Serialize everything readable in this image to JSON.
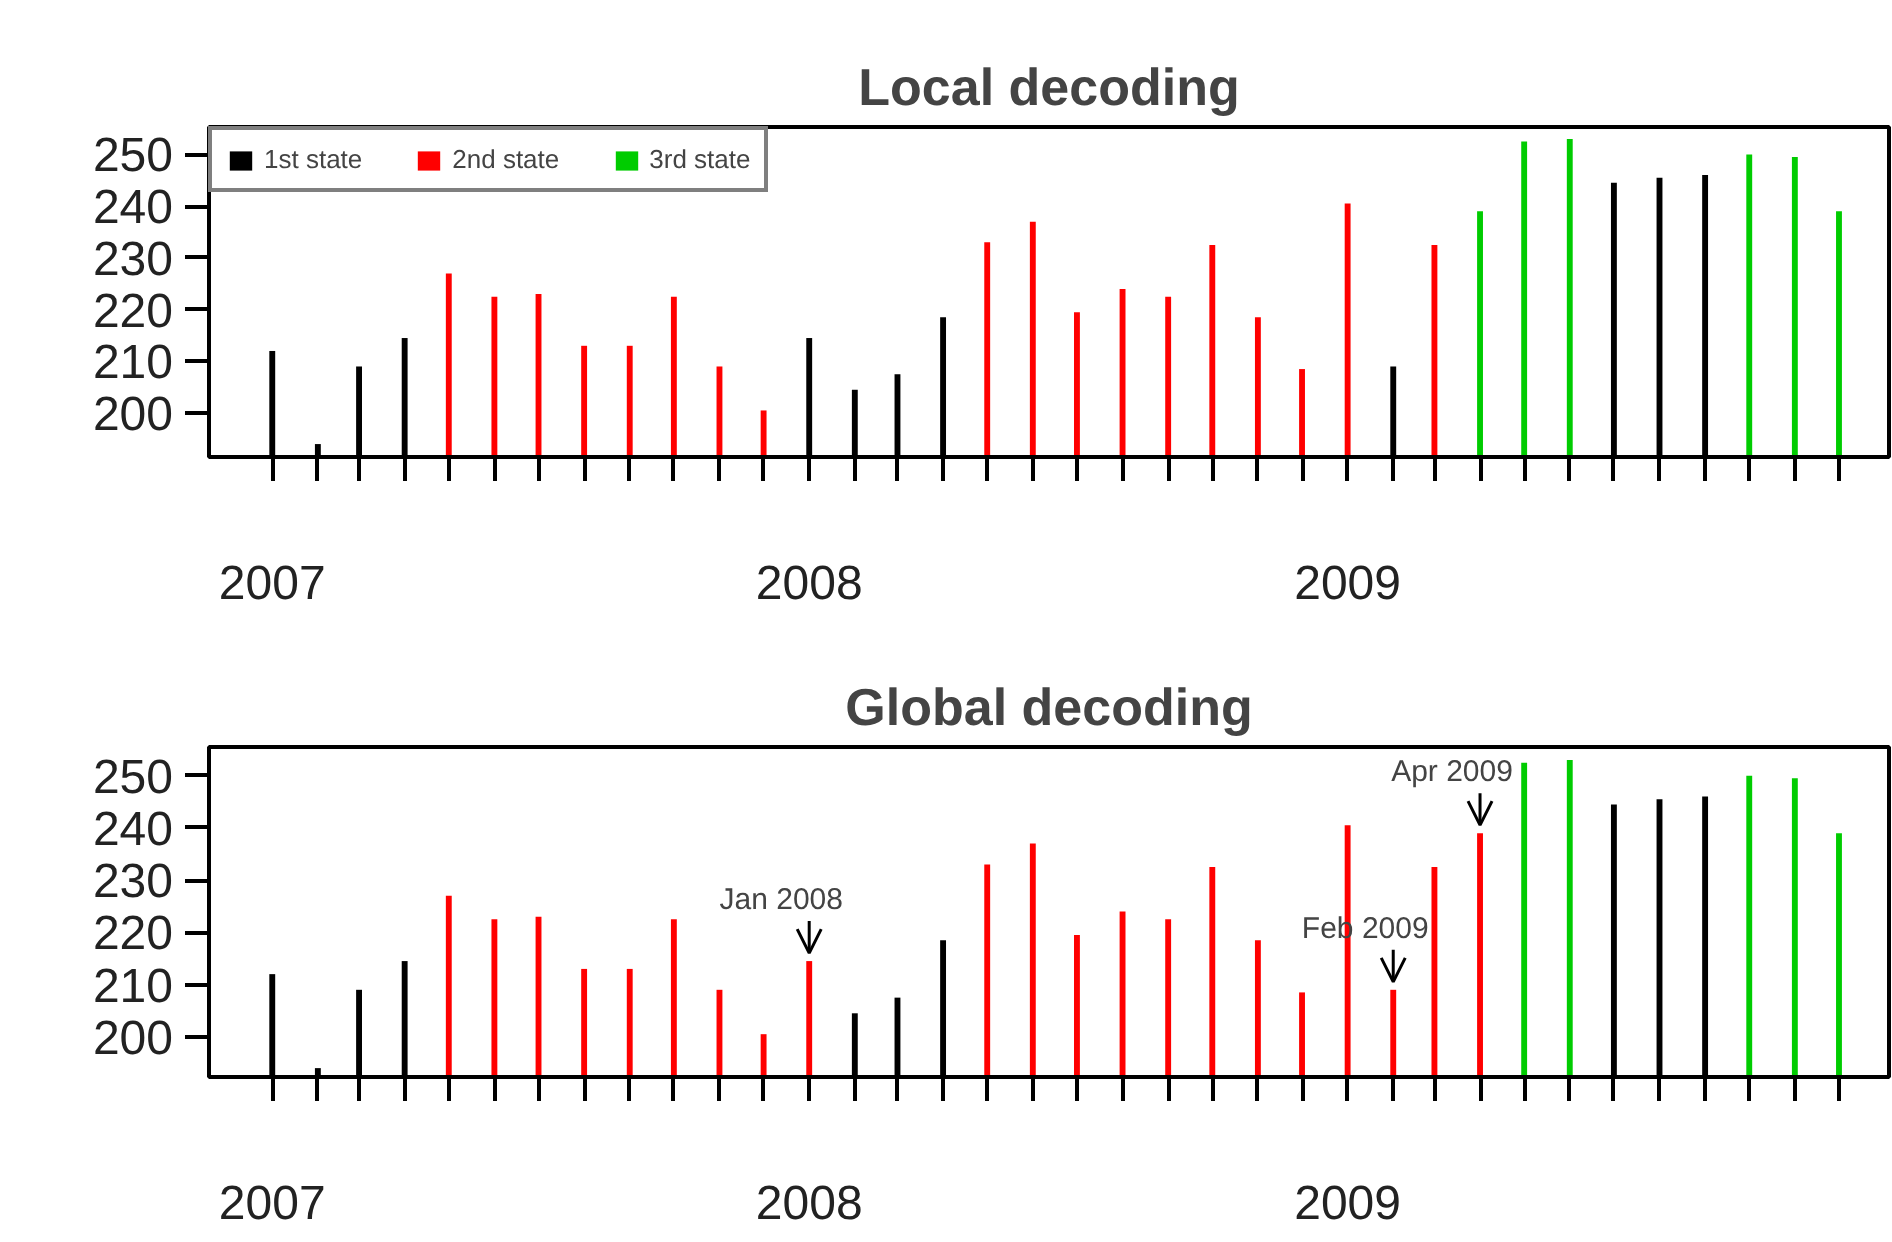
{
  "chart_data": [
    {
      "type": "bar",
      "title": "Local decoding",
      "x": [
        "2007-01",
        "2007-02",
        "2007-03",
        "2007-04",
        "2007-05",
        "2007-06",
        "2007-07",
        "2007-08",
        "2007-09",
        "2007-10",
        "2007-11",
        "2007-12",
        "2008-01",
        "2008-02",
        "2008-03",
        "2008-04",
        "2008-05",
        "2008-06",
        "2008-07",
        "2008-08",
        "2008-09",
        "2008-10",
        "2008-11",
        "2008-12",
        "2009-01",
        "2009-02",
        "2009-03",
        "2009-04",
        "2009-05",
        "2009-06",
        "2009-07",
        "2009-08",
        "2009-09",
        "2009-10",
        "2009-11",
        "2009-12"
      ],
      "series": [
        {
          "name": "1st state",
          "color": "#000000",
          "values": [
            212,
            194,
            209,
            214.5,
            null,
            null,
            null,
            null,
            null,
            null,
            null,
            null,
            214.5,
            204.5,
            207.5,
            218.5,
            null,
            null,
            null,
            null,
            null,
            null,
            null,
            null,
            null,
            209,
            null,
            null,
            null,
            null,
            244.5,
            245.5,
            246,
            null,
            null,
            null
          ]
        },
        {
          "name": "2nd state",
          "color": "#ff0000",
          "values": [
            null,
            null,
            null,
            null,
            227,
            222.5,
            223,
            213,
            213,
            222.5,
            209,
            200.5,
            null,
            null,
            null,
            null,
            233,
            237,
            219.5,
            224,
            222.5,
            232.5,
            218.5,
            208.5,
            240.5,
            null,
            232.5,
            null,
            null,
            null,
            null,
            null,
            null,
            null,
            null,
            null
          ]
        },
        {
          "name": "3rd state",
          "color": "#00cc00",
          "values": [
            null,
            null,
            null,
            null,
            null,
            null,
            null,
            null,
            null,
            null,
            null,
            null,
            null,
            null,
            null,
            null,
            null,
            null,
            null,
            null,
            null,
            null,
            null,
            null,
            null,
            null,
            null,
            239,
            252.5,
            253,
            null,
            null,
            null,
            250,
            249.5,
            239
          ]
        }
      ],
      "xlim": [
        "2006-11-19",
        "2010-01-04"
      ],
      "xticks": [
        {
          "value": "2007-01",
          "label": "2007"
        },
        {
          "value": "2007-02",
          "label": null
        },
        {
          "value": "2007-03",
          "label": null
        },
        {
          "value": "2007-04",
          "label": null
        },
        {
          "value": "2007-05",
          "label": null
        },
        {
          "value": "2007-06",
          "label": null
        },
        {
          "value": "2007-07",
          "label": null
        },
        {
          "value": "2007-08",
          "label": null
        },
        {
          "value": "2007-09",
          "label": null
        },
        {
          "value": "2007-10",
          "label": null
        },
        {
          "value": "2007-11",
          "label": null
        },
        {
          "value": "2007-12",
          "label": null
        },
        {
          "value": "2008-01",
          "label": "2008"
        },
        {
          "value": "2008-02",
          "label": null
        },
        {
          "value": "2008-03",
          "label": null
        },
        {
          "value": "2008-04",
          "label": null
        },
        {
          "value": "2008-05",
          "label": null
        },
        {
          "value": "2008-06",
          "label": null
        },
        {
          "value": "2008-07",
          "label": null
        },
        {
          "value": "2008-08",
          "label": null
        },
        {
          "value": "2008-09",
          "label": null
        },
        {
          "value": "2008-10",
          "label": null
        },
        {
          "value": "2008-11",
          "label": null
        },
        {
          "value": "2008-12",
          "label": null
        },
        {
          "value": "2009-01",
          "label": "2009"
        },
        {
          "value": "2009-02",
          "label": null
        },
        {
          "value": "2009-03",
          "label": null
        },
        {
          "value": "2009-04",
          "label": null
        },
        {
          "value": "2009-05",
          "label": null
        },
        {
          "value": "2009-06",
          "label": null
        },
        {
          "value": "2009-07",
          "label": null
        },
        {
          "value": "2009-08",
          "label": null
        },
        {
          "value": "2009-09",
          "label": null
        },
        {
          "value": "2009-10",
          "label": null
        },
        {
          "value": "2009-11",
          "label": null
        },
        {
          "value": "2009-12",
          "label": null
        }
      ],
      "ylim": [
        191.5,
        255.3
      ],
      "yticks": [
        200,
        210,
        220,
        230,
        240,
        250
      ],
      "grid": false,
      "legend": "top left"
    },
    {
      "type": "bar",
      "title": "Global decoding",
      "x": [
        "2007-01",
        "2007-02",
        "2007-03",
        "2007-04",
        "2007-05",
        "2007-06",
        "2007-07",
        "2007-08",
        "2007-09",
        "2007-10",
        "2007-11",
        "2007-12",
        "2008-01",
        "2008-02",
        "2008-03",
        "2008-04",
        "2008-05",
        "2008-06",
        "2008-07",
        "2008-08",
        "2008-09",
        "2008-10",
        "2008-11",
        "2008-12",
        "2009-01",
        "2009-02",
        "2009-03",
        "2009-04",
        "2009-05",
        "2009-06",
        "2009-07",
        "2009-08",
        "2009-09",
        "2009-10",
        "2009-11",
        "2009-12"
      ],
      "series": [
        {
          "color": "#000000",
          "values": [
            212,
            194,
            209,
            214.5,
            null,
            null,
            null,
            null,
            null,
            null,
            null,
            null,
            null,
            204.5,
            207.5,
            218.5,
            null,
            null,
            null,
            null,
            null,
            null,
            null,
            null,
            null,
            null,
            null,
            null,
            null,
            null,
            244.5,
            245.5,
            246,
            null,
            null,
            null
          ]
        },
        {
          "color": "#ff0000",
          "values": [
            null,
            null,
            null,
            null,
            227,
            222.5,
            223,
            213,
            213,
            222.5,
            209,
            200.5,
            214.5,
            null,
            null,
            null,
            233,
            237,
            219.5,
            224,
            222.5,
            232.5,
            218.5,
            208.5,
            240.5,
            209,
            232.5,
            239,
            null,
            null,
            null,
            null,
            null,
            null,
            null,
            null
          ]
        },
        {
          "color": "#00cc00",
          "values": [
            null,
            null,
            null,
            null,
            null,
            null,
            null,
            null,
            null,
            null,
            null,
            null,
            null,
            null,
            null,
            null,
            null,
            null,
            null,
            null,
            null,
            null,
            null,
            null,
            null,
            null,
            null,
            null,
            252.5,
            253,
            null,
            null,
            null,
            250,
            249.5,
            239
          ]
        }
      ],
      "annotations": [
        {
          "text": "Jan 2008",
          "x": "2008-01",
          "y": 214.5
        },
        {
          "text": "Feb 2009",
          "x": "2009-02",
          "y": 209
        },
        {
          "text": "Apr 2009",
          "x": "2009-04",
          "y": 239
        }
      ],
      "xlim": [
        "2006-11-19",
        "2010-01-04"
      ],
      "xticks": [
        {
          "value": "2007-01",
          "label": "2007"
        },
        {
          "value": "2007-02",
          "label": null
        },
        {
          "value": "2007-03",
          "label": null
        },
        {
          "value": "2007-04",
          "label": null
        },
        {
          "value": "2007-05",
          "label": null
        },
        {
          "value": "2007-06",
          "label": null
        },
        {
          "value": "2007-07",
          "label": null
        },
        {
          "value": "2007-08",
          "label": null
        },
        {
          "value": "2007-09",
          "label": null
        },
        {
          "value": "2007-10",
          "label": null
        },
        {
          "value": "2007-11",
          "label": null
        },
        {
          "value": "2007-12",
          "label": null
        },
        {
          "value": "2008-01",
          "label": "2008"
        },
        {
          "value": "2008-02",
          "label": null
        },
        {
          "value": "2008-03",
          "label": null
        },
        {
          "value": "2008-04",
          "label": null
        },
        {
          "value": "2008-05",
          "label": null
        },
        {
          "value": "2008-06",
          "label": null
        },
        {
          "value": "2008-07",
          "label": null
        },
        {
          "value": "2008-08",
          "label": null
        },
        {
          "value": "2008-09",
          "label": null
        },
        {
          "value": "2008-10",
          "label": null
        },
        {
          "value": "2008-11",
          "label": null
        },
        {
          "value": "2008-12",
          "label": null
        },
        {
          "value": "2009-01",
          "label": "2009"
        },
        {
          "value": "2009-02",
          "label": null
        },
        {
          "value": "2009-03",
          "label": null
        },
        {
          "value": "2009-04",
          "label": null
        },
        {
          "value": "2009-05",
          "label": null
        },
        {
          "value": "2009-06",
          "label": null
        },
        {
          "value": "2009-07",
          "label": null
        },
        {
          "value": "2009-08",
          "label": null
        },
        {
          "value": "2009-09",
          "label": null
        },
        {
          "value": "2009-10",
          "label": null
        },
        {
          "value": "2009-11",
          "label": null
        },
        {
          "value": "2009-12",
          "label": null
        }
      ],
      "ylim": [
        192.3,
        255.5
      ],
      "yticks": [
        200,
        210,
        220,
        230,
        240,
        250
      ],
      "grid": false,
      "legend": false
    }
  ]
}
